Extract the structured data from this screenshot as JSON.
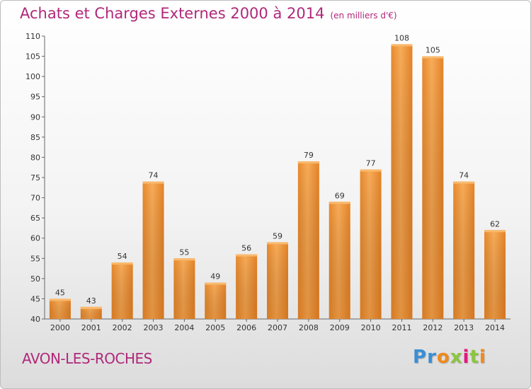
{
  "title": "Achats et Charges Externes 2000 à 2014",
  "subtitle": "(en milliers d'€)",
  "town": "AVON-LES-ROCHES",
  "logo": {
    "text": "Proxiti",
    "letters": [
      "P",
      "r",
      "o",
      "x",
      "i",
      "t",
      "i"
    ],
    "colors": [
      "#3a8fd6",
      "#3a8fd6",
      "#f08a1c",
      "#8cc63f",
      "#e0197d",
      "#8cc63f",
      "#f08a1c"
    ]
  },
  "colors": {
    "bar_light": "#f7a44e",
    "bar_dark": "#e07a1d",
    "title": "#b0287a"
  },
  "chart_data": {
    "type": "bar",
    "categories": [
      "2000",
      "2001",
      "2002",
      "2003",
      "2004",
      "2005",
      "2006",
      "2007",
      "2008",
      "2009",
      "2010",
      "2011",
      "2012",
      "2013",
      "2014"
    ],
    "values": [
      45,
      43,
      54,
      74,
      55,
      49,
      56,
      59,
      79,
      69,
      77,
      108,
      105,
      74,
      62
    ],
    "ylim": [
      40,
      110
    ],
    "yticks": [
      40,
      45,
      50,
      55,
      60,
      65,
      70,
      75,
      80,
      85,
      90,
      95,
      100,
      105,
      110
    ],
    "grid": false
  }
}
